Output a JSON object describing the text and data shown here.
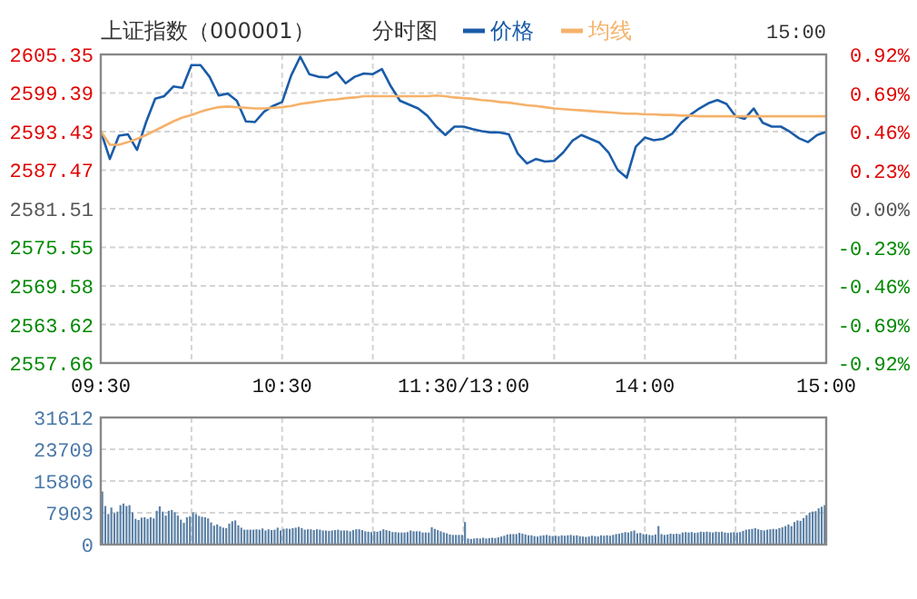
{
  "chart_data": [
    {
      "type": "line",
      "title": "上证指数（000001）",
      "subtitle": "分时图",
      "annotations": [
        "15:00"
      ],
      "legend": "top",
      "grid": true,
      "categories": [
        "09:30",
        null,
        null,
        null,
        null,
        null,
        null,
        null,
        null,
        null,
        null,
        null,
        null,
        null,
        null,
        null,
        null,
        null,
        null,
        null,
        "10:30",
        null,
        null,
        null,
        null,
        null,
        null,
        null,
        null,
        null,
        null,
        null,
        null,
        null,
        null,
        null,
        null,
        null,
        null,
        null,
        "11:30/13:00",
        null,
        null,
        null,
        null,
        null,
        null,
        null,
        null,
        null,
        null,
        null,
        null,
        null,
        null,
        null,
        null,
        null,
        null,
        null,
        "14:00",
        null,
        null,
        null,
        null,
        null,
        null,
        null,
        null,
        null,
        null,
        null,
        null,
        null,
        null,
        null,
        null,
        null,
        null,
        null,
        "15:00"
      ],
      "ylim": [
        2557.66,
        2605.35
      ],
      "yticks": [
        2557.66,
        2563.62,
        2569.58,
        2575.55,
        2581.51,
        2587.47,
        2593.43,
        2599.39,
        2605.35
      ],
      "y2lim": [
        -0.92,
        0.92
      ],
      "y2ticks": [
        {
          "value": -0.92,
          "label": "-0.92%"
        },
        {
          "value": -0.69,
          "label": "-0.69%"
        },
        {
          "value": -0.46,
          "label": "-0.46%"
        },
        {
          "value": -0.23,
          "label": "-0.23%"
        },
        {
          "value": 0,
          "label": "0.00%"
        },
        {
          "value": 0.23,
          "label": "0.23%"
        },
        {
          "value": 0.46,
          "label": "0.46%"
        },
        {
          "value": 0.69,
          "label": "0.69%"
        },
        {
          "value": 0.92,
          "label": "0.92%"
        }
      ],
      "series": [
        {
          "name": "价格",
          "color": "#1a5ca8",
          "values": [
            2593.5,
            2589.2,
            2592.8,
            2593.0,
            2590.6,
            2594.9,
            2598.5,
            2598.9,
            2600.4,
            2600.2,
            2603.7,
            2603.7,
            2601.9,
            2599.0,
            2599.3,
            2598.2,
            2595.0,
            2594.9,
            2596.5,
            2597.4,
            2598.0,
            2602.1,
            2605.0,
            2602.3,
            2601.9,
            2601.8,
            2602.6,
            2600.9,
            2601.9,
            2602.4,
            2602.3,
            2603.1,
            2600.4,
            2598.2,
            2597.6,
            2597.0,
            2595.9,
            2594.2,
            2592.9,
            2594.2,
            2594.2,
            2593.8,
            2593.5,
            2593.3,
            2593.3,
            2593.0,
            2590.0,
            2588.5,
            2589.2,
            2588.8,
            2588.9,
            2590.2,
            2592.0,
            2592.9,
            2592.3,
            2591.7,
            2590.2,
            2587.5,
            2586.3,
            2591.1,
            2592.5,
            2592.1,
            2592.3,
            2593.1,
            2594.8,
            2596.0,
            2597.0,
            2597.8,
            2598.3,
            2597.7,
            2595.8,
            2595.4,
            2597.0,
            2594.8,
            2594.2,
            2594.2,
            2593.4,
            2592.4,
            2591.8,
            2592.9,
            2593.4
          ]
        },
        {
          "name": "均线",
          "color": "#f5b26b",
          "values": [
            2593.5,
            2591.4,
            2591.4,
            2591.8,
            2592.3,
            2592.9,
            2593.6,
            2594.3,
            2595.0,
            2595.6,
            2596.0,
            2596.5,
            2596.9,
            2597.2,
            2597.3,
            2597.2,
            2597.1,
            2597.0,
            2597.0,
            2597.1,
            2597.2,
            2597.4,
            2597.7,
            2597.9,
            2598.1,
            2598.3,
            2598.4,
            2598.6,
            2598.7,
            2598.9,
            2598.9,
            2598.9,
            2598.9,
            2598.9,
            2598.9,
            2598.9,
            2598.9,
            2599.0,
            2598.9,
            2598.7,
            2598.6,
            2598.5,
            2598.3,
            2598.2,
            2598.0,
            2597.9,
            2597.7,
            2597.5,
            2597.4,
            2597.2,
            2597.0,
            2596.9,
            2596.8,
            2596.7,
            2596.6,
            2596.5,
            2596.4,
            2596.3,
            2596.2,
            2596.2,
            2596.1,
            2596.1,
            2596.0,
            2596.0,
            2595.9,
            2595.9,
            2595.8,
            2595.8,
            2595.8,
            2595.8,
            2595.8,
            2595.8,
            2595.8,
            2595.8,
            2595.8,
            2595.8,
            2595.8,
            2595.8,
            2595.8,
            2595.8,
            2595.8
          ]
        }
      ]
    },
    {
      "type": "bar",
      "grid": true,
      "tick_labels": "y",
      "color": "#5b80a5",
      "ylim": [
        0,
        31612
      ],
      "yticks": [
        0,
        7903,
        15806,
        23709,
        31612
      ],
      "categories": [
        null,
        null,
        null,
        null,
        null,
        null,
        null,
        null,
        null,
        null,
        null,
        null,
        null,
        null,
        null,
        null,
        null,
        null,
        null,
        null,
        null,
        null,
        null,
        null,
        null,
        null,
        null,
        null,
        null,
        null,
        null,
        null,
        null,
        null,
        null,
        null,
        null,
        null,
        null,
        null,
        null,
        null,
        null,
        null,
        null,
        null,
        null,
        null,
        null,
        null,
        null,
        null,
        null,
        null,
        null,
        null,
        null,
        null,
        null,
        null,
        null,
        null,
        null,
        null,
        null,
        null,
        null,
        null,
        null,
        null,
        null,
        null,
        null,
        null,
        null,
        null,
        null,
        null,
        null,
        null,
        null,
        null,
        null,
        null,
        null,
        null,
        null,
        null,
        null,
        null,
        null,
        null,
        null,
        null,
        null,
        null,
        null,
        null,
        null,
        null,
        null,
        null,
        null,
        null,
        null,
        null,
        null,
        null,
        null,
        null,
        null,
        null,
        null,
        null,
        null,
        null,
        null,
        null,
        null,
        null,
        null,
        null,
        null,
        null,
        null,
        null,
        null,
        null,
        null,
        null,
        null,
        null,
        null,
        null,
        null,
        null,
        null,
        null,
        null,
        null,
        null,
        null,
        null,
        null,
        null,
        null,
        null,
        null,
        null,
        null,
        null,
        null,
        null,
        null,
        null,
        null,
        null,
        null,
        null,
        null,
        null,
        null,
        null,
        null,
        null,
        null,
        null,
        null,
        null,
        null,
        null,
        null,
        null,
        null,
        null,
        null,
        null,
        null,
        null,
        null,
        null,
        null,
        null,
        null,
        null,
        null,
        null,
        null,
        null,
        null,
        null,
        null,
        null,
        null,
        null,
        null,
        null,
        null,
        null,
        null,
        null,
        null,
        null,
        null,
        null,
        null,
        null,
        null,
        null,
        null,
        null,
        null,
        null,
        null,
        null,
        null,
        null,
        null,
        null,
        null,
        null,
        null,
        null,
        null,
        null,
        null,
        null,
        null,
        null,
        null,
        null,
        null,
        null,
        null,
        null,
        null,
        null,
        null,
        null,
        null
      ],
      "values": [
        13200,
        9600,
        7600,
        9200,
        7800,
        8200,
        9800,
        10200,
        9600,
        9800,
        8000,
        6400,
        6100,
        6700,
        6800,
        6400,
        6800,
        6500,
        8400,
        9500,
        8200,
        7200,
        8400,
        8600,
        8000,
        7200,
        6200,
        5400,
        6800,
        7000,
        8000,
        7600,
        7100,
        6900,
        6800,
        6500,
        5500,
        4700,
        5000,
        4500,
        4200,
        4100,
        5200,
        5800,
        6000,
        4800,
        4200,
        3700,
        3700,
        3700,
        3700,
        3800,
        3700,
        4000,
        3500,
        3800,
        3600,
        3700,
        4200,
        3500,
        3900,
        4000,
        3900,
        4100,
        4200,
        4400,
        4100,
        3700,
        3800,
        3800,
        3600,
        3800,
        3700,
        3500,
        3500,
        3400,
        3500,
        3600,
        3700,
        3500,
        3500,
        3500,
        3300,
        3600,
        3800,
        3800,
        3600,
        3300,
        3200,
        3100,
        3300,
        3200,
        3400,
        3800,
        3600,
        3400,
        3100,
        3100,
        3000,
        3000,
        3000,
        3100,
        3500,
        3300,
        3300,
        3300,
        3000,
        3000,
        3000,
        4300,
        3900,
        3600,
        3300,
        3000,
        2800,
        2500,
        2400,
        2400,
        2400,
        2400,
        5600,
        1500,
        1400,
        1500,
        1600,
        1500,
        1700,
        1500,
        1600,
        1700,
        1600,
        1800,
        2000,
        2200,
        2500,
        2600,
        2600,
        2600,
        2900,
        2700,
        2500,
        2300,
        2300,
        2100,
        2000,
        2200,
        2300,
        2400,
        2200,
        2100,
        2200,
        2100,
        2300,
        2200,
        2300,
        2400,
        2200,
        2300,
        2100,
        2000,
        1900,
        2000,
        2200,
        2100,
        2000,
        2300,
        2200,
        2300,
        2200,
        2400,
        2600,
        2700,
        2900,
        3100,
        3000,
        3300,
        3500,
        2800,
        2900,
        2600,
        2600,
        2400,
        2300,
        2500,
        4600,
        2600,
        2400,
        2500,
        2700,
        2600,
        2700,
        2600,
        3000,
        3100,
        3000,
        3100,
        2900,
        3000,
        3200,
        3100,
        3200,
        3100,
        3000,
        3200,
        3100,
        3200,
        3000,
        2900,
        3000,
        3100,
        3000,
        3100,
        3400,
        3700,
        3800,
        3900,
        4100,
        3800,
        3600,
        3500,
        3700,
        3800,
        3900,
        3800,
        4100,
        4300,
        4600,
        5000,
        4600,
        5600,
        6000,
        5900,
        6600,
        7300,
        7900,
        8200,
        8300,
        9000,
        9400,
        9800
      ]
    }
  ]
}
